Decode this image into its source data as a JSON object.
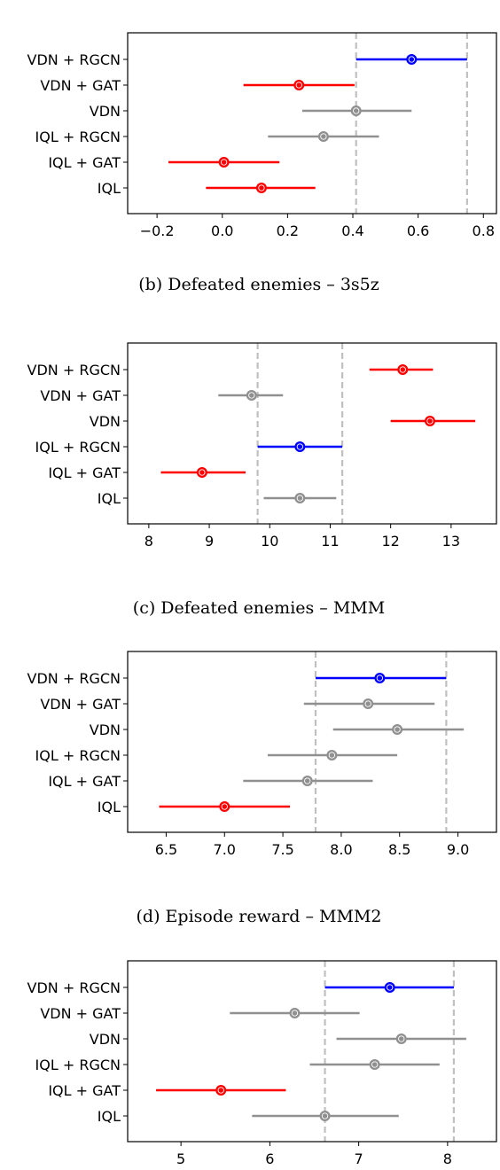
{
  "chart_data": [
    {
      "type": "errorbar",
      "title": "",
      "categories": [
        "VDN + RGCN",
        "VDN + GAT",
        "VDN",
        "IQL + RGCN",
        "IQL + GAT",
        "IQL"
      ],
      "points": [
        {
          "mean": 0.58,
          "low": 0.41,
          "high": 0.75,
          "color": "#0000ff"
        },
        {
          "mean": 0.235,
          "low": 0.065,
          "high": 0.405,
          "color": "#ff0000"
        },
        {
          "mean": 0.41,
          "low": 0.245,
          "high": 0.58,
          "color": "#909090"
        },
        {
          "mean": 0.31,
          "low": 0.14,
          "high": 0.48,
          "color": "#909090"
        },
        {
          "mean": 0.005,
          "low": -0.165,
          "high": 0.175,
          "color": "#ff0000"
        },
        {
          "mean": 0.12,
          "low": -0.05,
          "high": 0.285,
          "color": "#ff0000"
        }
      ],
      "vlines": [
        0.41,
        0.75
      ],
      "xlim": [
        -0.29,
        0.84
      ],
      "xticks": [
        -0.2,
        0.0,
        0.2,
        0.4,
        0.6,
        0.8
      ],
      "xtick_labels": [
        "−0.2",
        "0.0",
        "0.2",
        "0.4",
        "0.6",
        "0.8"
      ]
    },
    {
      "type": "errorbar",
      "title": "(b) Defeated enemies – 3s5z",
      "categories": [
        "VDN + RGCN",
        "VDN + GAT",
        "VDN",
        "IQL + RGCN",
        "IQL + GAT",
        "IQL"
      ],
      "points": [
        {
          "mean": 12.2,
          "low": 11.65,
          "high": 12.7,
          "color": "#ff0000"
        },
        {
          "mean": 9.7,
          "low": 9.15,
          "high": 10.22,
          "color": "#909090"
        },
        {
          "mean": 12.65,
          "low": 12.0,
          "high": 13.4,
          "color": "#ff0000"
        },
        {
          "mean": 10.5,
          "low": 9.8,
          "high": 11.2,
          "color": "#0000ff"
        },
        {
          "mean": 8.88,
          "low": 8.2,
          "high": 9.6,
          "color": "#ff0000"
        },
        {
          "mean": 10.5,
          "low": 9.9,
          "high": 11.1,
          "color": "#909090"
        }
      ],
      "vlines": [
        9.8,
        11.2
      ],
      "xlim": [
        7.65,
        13.75
      ],
      "xticks": [
        8,
        9,
        10,
        11,
        12,
        13
      ],
      "xtick_labels": [
        "8",
        "9",
        "10",
        "11",
        "12",
        "13"
      ]
    },
    {
      "type": "errorbar",
      "title": "(c) Defeated enemies – MMM",
      "categories": [
        "VDN + RGCN",
        "VDN + GAT",
        "VDN",
        "IQL + RGCN",
        "IQL + GAT",
        "IQL"
      ],
      "points": [
        {
          "mean": 8.33,
          "low": 7.78,
          "high": 8.9,
          "color": "#0000ff"
        },
        {
          "mean": 8.23,
          "low": 7.68,
          "high": 8.8,
          "color": "#909090"
        },
        {
          "mean": 8.48,
          "low": 7.93,
          "high": 9.05,
          "color": "#909090"
        },
        {
          "mean": 7.92,
          "low": 7.37,
          "high": 8.48,
          "color": "#909090"
        },
        {
          "mean": 7.71,
          "low": 7.16,
          "high": 8.27,
          "color": "#909090"
        },
        {
          "mean": 7.0,
          "low": 6.44,
          "high": 7.56,
          "color": "#ff0000"
        }
      ],
      "vlines": [
        7.78,
        8.9
      ],
      "xlim": [
        6.17,
        9.33
      ],
      "xticks": [
        6.5,
        7.0,
        7.5,
        8.0,
        8.5,
        9.0
      ],
      "xtick_labels": [
        "6.5",
        "7.0",
        "7.5",
        "8.0",
        "8.5",
        "9.0"
      ]
    },
    {
      "type": "errorbar",
      "title": "(d) Episode reward – MMM2",
      "categories": [
        "VDN + RGCN",
        "VDN + GAT",
        "VDN",
        "IQL + RGCN",
        "IQL + GAT",
        "IQL"
      ],
      "points": [
        {
          "mean": 7.35,
          "low": 6.62,
          "high": 8.07,
          "color": "#0000ff"
        },
        {
          "mean": 6.28,
          "low": 5.55,
          "high": 7.01,
          "color": "#909090"
        },
        {
          "mean": 7.48,
          "low": 6.75,
          "high": 8.21,
          "color": "#909090"
        },
        {
          "mean": 7.18,
          "low": 6.45,
          "high": 7.91,
          "color": "#909090"
        },
        {
          "mean": 5.45,
          "low": 4.72,
          "high": 6.18,
          "color": "#ff0000"
        },
        {
          "mean": 6.62,
          "low": 5.8,
          "high": 7.45,
          "color": "#909090"
        }
      ],
      "vlines": [
        6.62,
        8.07
      ],
      "xlim": [
        4.4,
        8.55
      ],
      "xticks": [
        5,
        6,
        7,
        8
      ],
      "xtick_labels": [
        "5",
        "6",
        "7",
        "8"
      ]
    }
  ],
  "colors": {
    "best": "#0000ff",
    "worse": "#ff0000",
    "neutral": "#909090",
    "reference_line": "#c0c0c0"
  }
}
